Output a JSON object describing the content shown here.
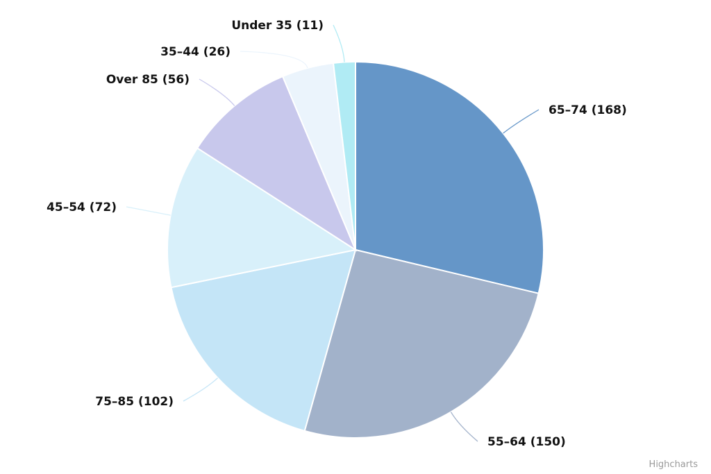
{
  "chart_data": {
    "type": "pie",
    "title": "",
    "slices": [
      {
        "label": "65–74 (168)",
        "value": 168,
        "color": "#6596c8"
      },
      {
        "label": "55–64 (150)",
        "value": 150,
        "color": "#a2b2ca"
      },
      {
        "label": "75–85 (102)",
        "value": 102,
        "color": "#c4e5f7"
      },
      {
        "label": "45–54 (72)",
        "value": 72,
        "color": "#d8f0fa"
      },
      {
        "label": "Over 85 (56)",
        "value": 56,
        "color": "#c8c8ec"
      },
      {
        "label": "35–44 (26)",
        "value": 26,
        "color": "#ebf4fc"
      },
      {
        "label": "Under 35 (11)",
        "value": 11,
        "color": "#b0ebf4"
      }
    ]
  },
  "credits": "Highcharts"
}
